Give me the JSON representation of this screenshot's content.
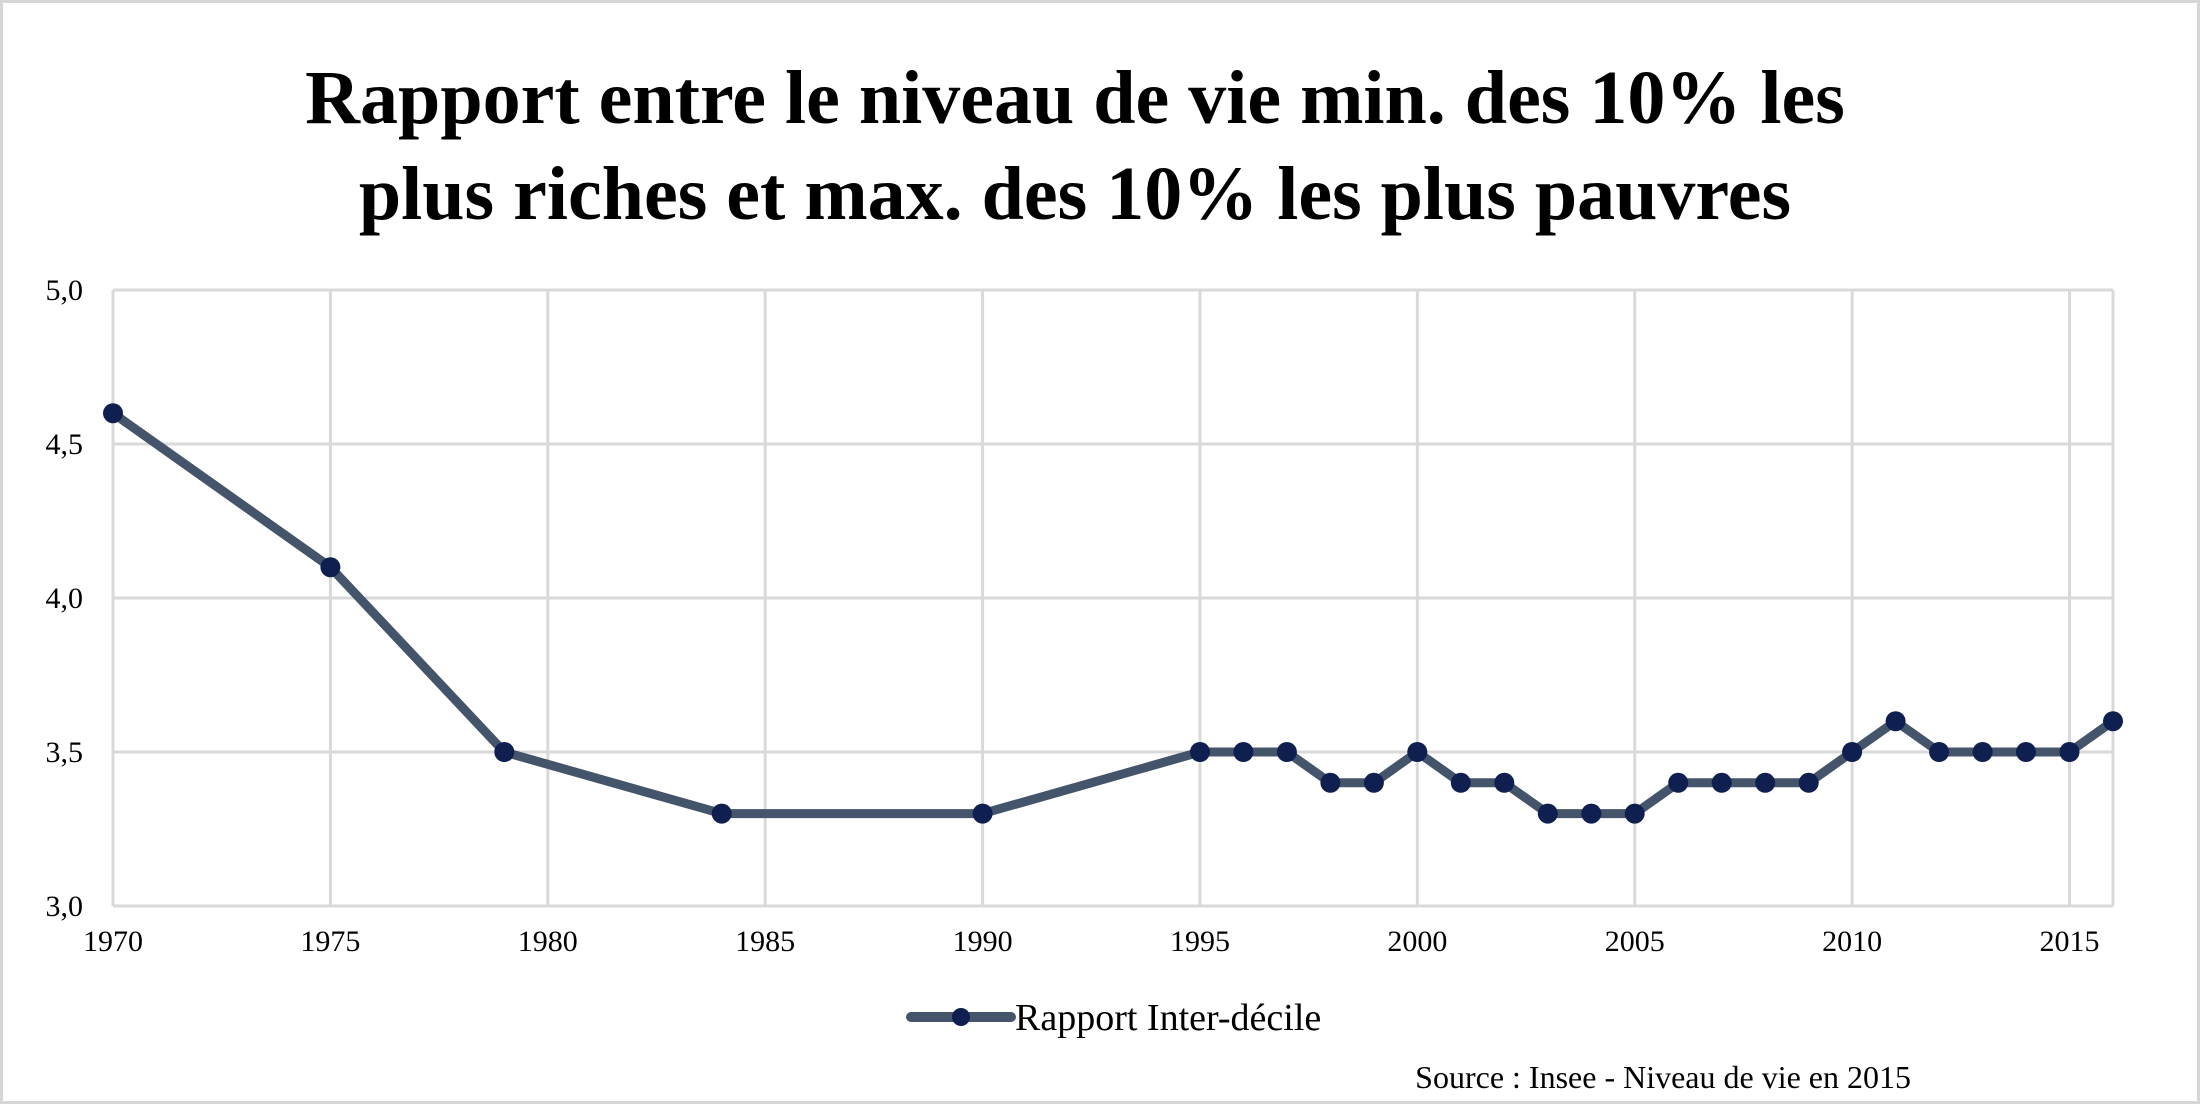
{
  "chart_data": {
    "type": "line",
    "title_lines": [
      "Rapport entre le niveau de vie min. des 10% les",
      "plus riches et max. des 10% les plus pauvres"
    ],
    "xlabel": "",
    "ylabel": "",
    "xlim": [
      1970,
      2016
    ],
    "ylim": [
      3.0,
      5.0
    ],
    "x_ticks": [
      "1970",
      "1975",
      "1980",
      "1985",
      "1990",
      "1995",
      "2000",
      "2005",
      "2010",
      "2015"
    ],
    "y_ticks": [
      "3,0",
      "3,5",
      "4,0",
      "4,5",
      "5,0"
    ],
    "grid": true,
    "legend_position": "bottom",
    "series": [
      {
        "name": "Rapport Inter-décile",
        "color": "#44546a",
        "marker_color": "#0f1f4f",
        "points": [
          {
            "x": 1970,
            "y": 4.6
          },
          {
            "x": 1975,
            "y": 4.1
          },
          {
            "x": 1979,
            "y": 3.5
          },
          {
            "x": 1984,
            "y": 3.3
          },
          {
            "x": 1990,
            "y": 3.3
          },
          {
            "x": 1995,
            "y": 3.5
          },
          {
            "x": 1996,
            "y": 3.5
          },
          {
            "x": 1997,
            "y": 3.5
          },
          {
            "x": 1998,
            "y": 3.4
          },
          {
            "x": 1999,
            "y": 3.4
          },
          {
            "x": 2000,
            "y": 3.5
          },
          {
            "x": 2001,
            "y": 3.4
          },
          {
            "x": 2002,
            "y": 3.4
          },
          {
            "x": 2003,
            "y": 3.3
          },
          {
            "x": 2004,
            "y": 3.3
          },
          {
            "x": 2005,
            "y": 3.3
          },
          {
            "x": 2006,
            "y": 3.4
          },
          {
            "x": 2007,
            "y": 3.4
          },
          {
            "x": 2008,
            "y": 3.4
          },
          {
            "x": 2009,
            "y": 3.4
          },
          {
            "x": 2010,
            "y": 3.5
          },
          {
            "x": 2011,
            "y": 3.6
          },
          {
            "x": 2012,
            "y": 3.5
          },
          {
            "x": 2013,
            "y": 3.5
          },
          {
            "x": 2014,
            "y": 3.5
          },
          {
            "x": 2015,
            "y": 3.5
          },
          {
            "x": 2016,
            "y": 3.6
          }
        ]
      }
    ],
    "source": "Source : Insee - Niveau de vie en 2015"
  }
}
